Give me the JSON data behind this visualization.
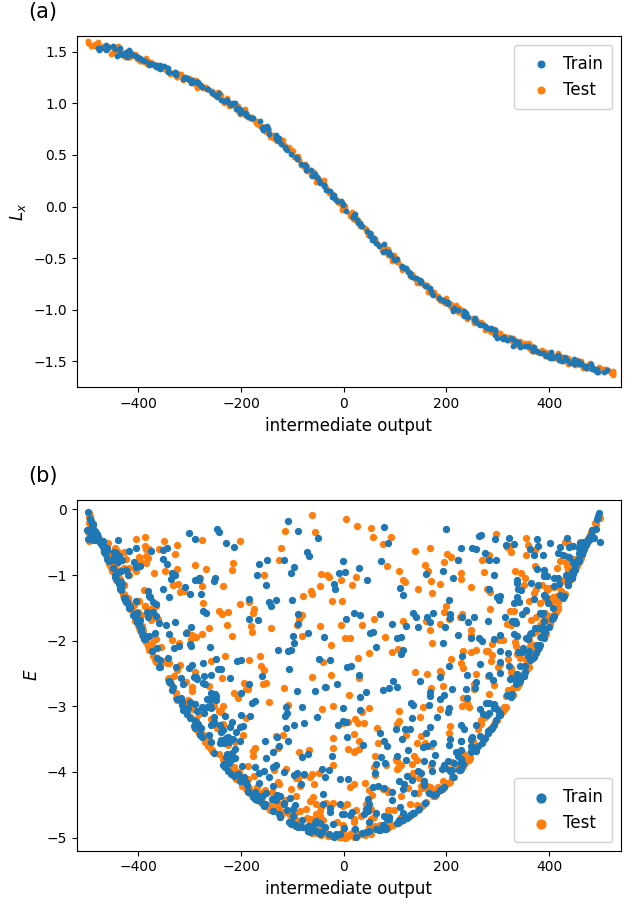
{
  "title_a": "(a)",
  "title_b": "(b)",
  "xlabel": "intermediate output",
  "ylabel_a": "$L_x$",
  "ylabel_b": "$E$",
  "train_color": "#1f77b4",
  "test_color": "#ff7f0e",
  "marker_size_a": 10,
  "marker_size_b": 18,
  "xlim_a": [
    -520,
    540
  ],
  "ylim_a": [
    -1.75,
    1.65
  ],
  "xlim_b": [
    -520,
    540
  ],
  "ylim_b": [
    -5.2,
    0.15
  ],
  "n_train_a": 250,
  "n_test_a": 450,
  "n_train_b": 800,
  "n_test_b": 800,
  "seed": 42,
  "figsize": [
    6.4,
    9.05
  ],
  "dpi": 100
}
